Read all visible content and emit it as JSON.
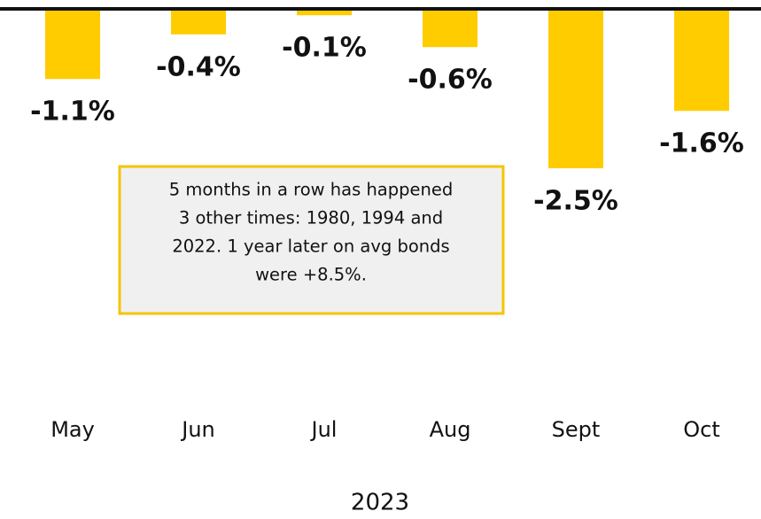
{
  "chart_data": {
    "type": "bar",
    "categories": [
      "May",
      "Jun",
      "Jul",
      "Aug",
      "Sept",
      "Oct"
    ],
    "values": [
      -1.1,
      -0.4,
      -0.1,
      -0.6,
      -2.5,
      -1.6
    ],
    "value_labels": [
      "-1.1%",
      "-0.4%",
      "-0.1%",
      "-0.6%",
      "-2.5%",
      "-1.6%"
    ],
    "color": "#ffcc00",
    "ylim": [
      -8,
      0
    ],
    "x_label": "2023",
    "annotation": [
      "5 months in a row has happened",
      "3 other times: 1980, 1994 and",
      "2022. 1 year later on avg bonds",
      "were +8.5%."
    ]
  }
}
